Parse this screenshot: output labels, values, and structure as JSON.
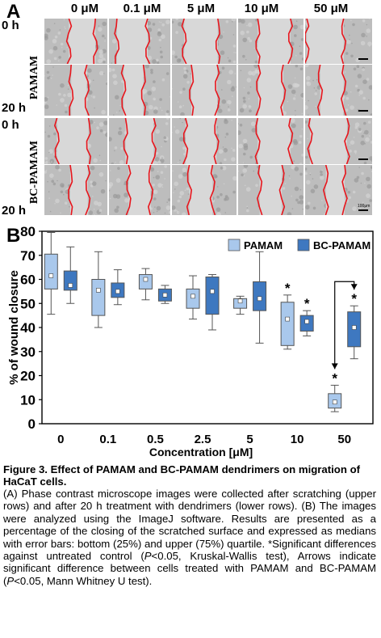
{
  "panel_a": {
    "letter": "A",
    "columns": [
      "0 μM",
      "0.1 μM",
      "5 μM",
      "10 μM",
      "50 μM"
    ],
    "groups": [
      "PAMAM",
      "BC-PAMAM"
    ],
    "rows": [
      "0 h",
      "20 h",
      "0 h",
      "20 h"
    ],
    "scale_bar_label": "100μm",
    "colors": {
      "wound_edge": "#e8151c",
      "image_gray": "#b8b8b8"
    }
  },
  "panel_b": {
    "letter": "B"
  },
  "chart_data": {
    "type": "box",
    "xlabel": "Concentration [μM]",
    "ylabel": "% of wound closure",
    "categories": [
      "0",
      "0.1",
      "0.5",
      "2.5",
      "5",
      "10",
      "50"
    ],
    "ylim": [
      0,
      80
    ],
    "yticks": [
      0,
      10,
      20,
      30,
      40,
      50,
      60,
      70,
      80
    ],
    "legend": {
      "position": "top-right"
    },
    "series": [
      {
        "name": "PAMAM",
        "color": "#a9c8ec",
        "boxes": [
          {
            "whisker_low": 45.5,
            "q1": 56,
            "median": 61.5,
            "q3": 70.5,
            "whisker_high": 79.5
          },
          {
            "whisker_low": 40,
            "q1": 45,
            "median": 55.5,
            "q3": 60,
            "whisker_high": 71.5
          },
          {
            "whisker_low": 51.5,
            "q1": 56,
            "median": 60,
            "q3": 62,
            "whisker_high": 64.5
          },
          {
            "whisker_low": 43.5,
            "q1": 48,
            "median": 53,
            "q3": 56,
            "whisker_high": 61.5
          },
          {
            "whisker_low": 45.5,
            "q1": 48,
            "median": 51,
            "q3": 52,
            "whisker_high": 53
          },
          {
            "whisker_low": 31,
            "q1": 32.5,
            "median": 43.5,
            "q3": 50.5,
            "whisker_high": 53.5
          },
          {
            "whisker_low": 5,
            "q1": 6.5,
            "median": 9,
            "q3": 12.5,
            "whisker_high": 16
          }
        ]
      },
      {
        "name": "BC-PAMAM",
        "color": "#3e78c0",
        "boxes": [
          {
            "whisker_low": 50,
            "q1": 55.5,
            "median": 57.5,
            "q3": 63.5,
            "whisker_high": 73.5
          },
          {
            "whisker_low": 49.5,
            "q1": 52.5,
            "median": 55,
            "q3": 58.5,
            "whisker_high": 64
          },
          {
            "whisker_low": 50,
            "q1": 51,
            "median": 53.5,
            "q3": 56,
            "whisker_high": 57.5
          },
          {
            "whisker_low": 39,
            "q1": 45.5,
            "median": 55,
            "q3": 61,
            "whisker_high": 62
          },
          {
            "whisker_low": 33.5,
            "q1": 47,
            "median": 52,
            "q3": 59,
            "whisker_high": 71.5
          },
          {
            "whisker_low": 36.5,
            "q1": 38.5,
            "median": 42.5,
            "q3": 45,
            "whisker_high": 47
          },
          {
            "whisker_low": 27,
            "q1": 32,
            "median": 40,
            "q3": 46.5,
            "whisker_high": 49
          }
        ]
      }
    ],
    "significance_marker": "*",
    "significant": [
      {
        "category": "10",
        "series": "PAMAM"
      },
      {
        "category": "10",
        "series": "BC-PAMAM"
      },
      {
        "category": "50",
        "series": "PAMAM"
      },
      {
        "category": "50",
        "series": "BC-PAMAM"
      }
    ],
    "comparison_arrow": {
      "category": "50",
      "between": [
        "BC-PAMAM",
        "PAMAM"
      ]
    }
  },
  "caption": {
    "title": "Figure 3. Effect of PAMAM and BC-PAMAM dendrimers on migration of HaCaT cells.",
    "text_a": "(A) Phase contrast microscope images were collected after scratching (upper rows) and after 20 h treatment with dendrimers (lower rows). (B) The images were analyzed using the ImageJ software. Results are presented as a percentage of the closing of the scratched surface and expressed as medians with error bars: bottom (25%) and upper (75%) quartile. *Significant differences against untreated control (",
    "p_italic": "P",
    "text_b": "<0.05, Kruskal-Wallis test), Arrows indicate significant difference between cells treated with PAMAM and BC-PAMAM (",
    "p_italic_2": "P",
    "text_c": "<0.05, Mann Whitney U test)."
  }
}
